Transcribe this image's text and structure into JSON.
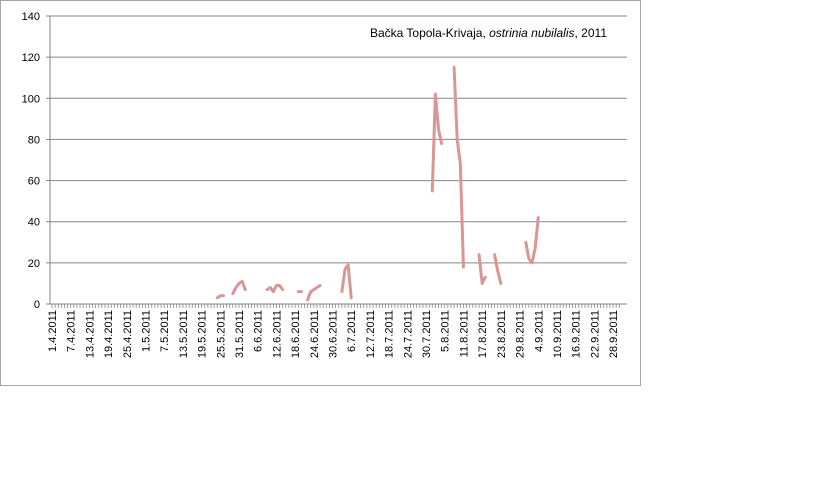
{
  "chart_data": {
    "type": "line",
    "title_segments": [
      {
        "text": "Bačka Topola-Krivaja, ",
        "italic": false
      },
      {
        "text": "ostrinia nubilalis",
        "italic": true
      },
      {
        "text": ", 2011",
        "italic": false
      }
    ],
    "categories": [
      "1.4.2011",
      null,
      null,
      null,
      null,
      null,
      "7.4.2011",
      null,
      null,
      null,
      null,
      null,
      "13.4.2011",
      null,
      null,
      null,
      null,
      null,
      "19.4.2011",
      null,
      null,
      null,
      null,
      null,
      "25.4.2011",
      null,
      null,
      null,
      null,
      null,
      "1.5.2011",
      null,
      null,
      null,
      null,
      null,
      "7.5.2011",
      null,
      null,
      null,
      null,
      null,
      "13.5.2011",
      null,
      null,
      null,
      null,
      null,
      "19.5.2011",
      null,
      null,
      null,
      null,
      null,
      "25.5.2011",
      null,
      null,
      null,
      null,
      null,
      "31.5.2011",
      null,
      null,
      null,
      null,
      null,
      "6.6.2011",
      null,
      null,
      null,
      null,
      null,
      "12.6.2011",
      null,
      null,
      null,
      null,
      null,
      "18.6.2011",
      null,
      null,
      null,
      null,
      null,
      "24.6.2011",
      null,
      null,
      null,
      null,
      null,
      "30.6.2011",
      null,
      null,
      null,
      null,
      null,
      "6.7.2011",
      null,
      null,
      null,
      null,
      null,
      "12.7.2011",
      null,
      null,
      null,
      null,
      null,
      "18.7.2011",
      null,
      null,
      null,
      null,
      null,
      "24.7.2011",
      null,
      null,
      null,
      null,
      null,
      "30.7.2011",
      null,
      null,
      null,
      null,
      null,
      "5.8.2011",
      null,
      null,
      null,
      null,
      null,
      "11.8.2011",
      null,
      null,
      null,
      null,
      null,
      "17.8.2011",
      null,
      null,
      null,
      null,
      null,
      "23.8.2011",
      null,
      null,
      null,
      null,
      null,
      "29.8.2011",
      null,
      null,
      null,
      null,
      null,
      "4.9.2011",
      null,
      null,
      null,
      null,
      null,
      "10.9.2011",
      null,
      null,
      null,
      null,
      null,
      "16.9.2011",
      null,
      null,
      null,
      null,
      null,
      "22.9.2011",
      null,
      null,
      null,
      null,
      null,
      "28.9.2011",
      null,
      null
    ],
    "values": [
      null,
      null,
      null,
      null,
      null,
      null,
      null,
      null,
      null,
      null,
      null,
      null,
      null,
      null,
      null,
      null,
      null,
      null,
      null,
      null,
      null,
      null,
      null,
      null,
      null,
      null,
      null,
      null,
      null,
      null,
      null,
      null,
      null,
      null,
      null,
      null,
      null,
      null,
      null,
      null,
      null,
      null,
      null,
      null,
      null,
      null,
      null,
      null,
      null,
      null,
      null,
      null,
      null,
      3,
      4,
      4,
      null,
      null,
      5,
      8,
      10,
      11,
      7,
      null,
      null,
      null,
      null,
      null,
      null,
      7,
      8,
      6,
      9,
      9,
      7,
      null,
      null,
      null,
      null,
      6,
      6,
      null,
      2,
      6,
      7,
      8,
      9,
      null,
      null,
      null,
      null,
      null,
      null,
      6,
      17,
      19,
      3,
      null,
      null,
      null,
      null,
      null,
      null,
      null,
      null,
      null,
      null,
      null,
      null,
      null,
      null,
      null,
      null,
      null,
      null,
      null,
      null,
      null,
      null,
      null,
      null,
      null,
      55,
      102,
      85,
      78,
      null,
      null,
      null,
      115,
      80,
      68,
      18,
      null,
      null,
      null,
      null,
      24,
      10,
      13,
      null,
      null,
      24,
      16,
      10,
      null,
      null,
      null,
      null,
      null,
      null,
      null,
      30,
      22,
      20,
      27,
      42,
      null,
      null,
      null,
      null,
      null,
      null,
      null,
      null,
      null,
      null,
      null,
      null,
      null,
      null,
      null,
      null,
      null,
      null,
      null,
      null,
      null,
      null,
      null,
      null,
      null,
      null
    ],
    "color": "#d99694",
    "ylim": [
      0,
      140
    ],
    "yticks": [
      0,
      20,
      40,
      60,
      80,
      100,
      120,
      140
    ],
    "grid": true
  }
}
